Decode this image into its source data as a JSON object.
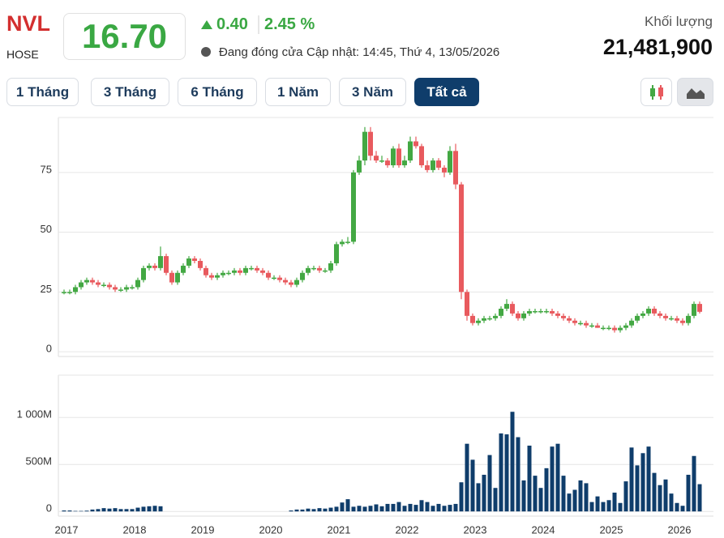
{
  "header": {
    "symbol": "NVL",
    "exchange": "HOSE",
    "price": "16.70",
    "change": "0.40",
    "change_pct": "2.45 %",
    "status": "Đang đóng cửa",
    "updated": "Cập nhật: 14:45, Thứ 4, 13/05/2026",
    "volume_label": "Khối lượng",
    "volume": "21,481,900"
  },
  "range_buttons": [
    "1 Tháng",
    "3 Tháng",
    "6 Tháng",
    "1 Năm",
    "3 Năm",
    "Tất cả"
  ],
  "chart_data": [
    {
      "type": "candlestick",
      "up_color": "#43a843",
      "down_color": "#e85a5e",
      "ylim": [
        -2,
        98
      ],
      "yticks": [
        0,
        25,
        50,
        75
      ],
      "grid": true,
      "open": [
        25,
        25,
        25,
        27,
        29,
        30,
        29,
        28,
        28,
        27,
        26,
        26,
        27,
        27,
        30,
        35,
        36,
        35,
        40,
        33,
        29,
        33,
        36,
        39,
        38,
        35,
        32,
        31,
        32,
        33,
        33,
        34,
        33,
        35,
        35,
        34,
        33,
        31,
        31,
        30,
        29,
        28,
        30,
        33,
        35,
        35,
        34,
        34,
        37,
        45,
        46,
        46,
        75,
        80,
        92,
        82,
        80,
        80,
        78,
        85,
        78,
        80,
        88,
        86,
        78,
        76,
        80,
        77,
        75,
        84,
        70,
        25,
        15,
        12,
        13,
        14,
        14,
        15,
        18,
        20,
        16,
        14,
        16,
        17,
        17,
        17,
        17,
        16,
        15,
        14,
        13,
        12,
        12,
        11,
        11,
        10,
        10,
        10,
        9,
        10,
        11,
        13,
        15,
        16,
        18,
        16,
        15,
        14,
        14,
        13,
        12,
        15,
        20
      ],
      "high": [
        26,
        26,
        28,
        30,
        31,
        31,
        30,
        29,
        29,
        28,
        27,
        28,
        28,
        31,
        36,
        37,
        37,
        44,
        41,
        34,
        34,
        37,
        40,
        40,
        39,
        36,
        33,
        33,
        34,
        34,
        35,
        35,
        36,
        36,
        36,
        35,
        34,
        32,
        32,
        31,
        30,
        31,
        34,
        36,
        36,
        36,
        35,
        38,
        46,
        47,
        48,
        76,
        82,
        94,
        94,
        84,
        82,
        81,
        86,
        87,
        82,
        90,
        90,
        87,
        80,
        81,
        81,
        78,
        86,
        87,
        71,
        26,
        16,
        14,
        15,
        15,
        16,
        19,
        22,
        21,
        17,
        17,
        18,
        18,
        18,
        18,
        18,
        17,
        16,
        15,
        14,
        13,
        13,
        12,
        12,
        11,
        11,
        11,
        11,
        12,
        14,
        16,
        17,
        19,
        19,
        17,
        16,
        15,
        15,
        14,
        16,
        21,
        21
      ],
      "low": [
        24,
        24,
        24,
        26,
        28,
        28,
        27,
        27,
        26,
        25,
        25,
        25,
        26,
        26,
        29,
        34,
        34,
        34,
        32,
        28,
        28,
        32,
        35,
        37,
        34,
        31,
        30,
        30,
        31,
        32,
        32,
        32,
        32,
        34,
        33,
        32,
        30,
        30,
        29,
        28,
        27,
        27,
        29,
        32,
        34,
        33,
        33,
        33,
        36,
        44,
        45,
        45,
        74,
        78,
        80,
        79,
        79,
        77,
        77,
        77,
        77,
        79,
        85,
        77,
        75,
        75,
        76,
        73,
        74,
        68,
        22,
        13,
        11,
        11,
        12,
        13,
        13,
        14,
        17,
        15,
        13,
        13,
        15,
        16,
        16,
        16,
        15,
        14,
        13,
        12,
        11,
        11,
        10,
        10,
        10,
        9,
        9,
        8,
        8,
        9,
        10,
        12,
        14,
        15,
        15,
        14,
        13,
        13,
        12,
        11,
        11,
        14,
        16
      ],
      "close": [
        25,
        25,
        27,
        29,
        30,
        29,
        28,
        28,
        27,
        26,
        26,
        27,
        27,
        30,
        35,
        36,
        35,
        40,
        33,
        29,
        33,
        36,
        39,
        38,
        35,
        32,
        31,
        32,
        33,
        33,
        34,
        33,
        35,
        35,
        34,
        33,
        31,
        31,
        30,
        29,
        28,
        30,
        33,
        35,
        35,
        34,
        34,
        37,
        45,
        46,
        46,
        75,
        80,
        92,
        82,
        80,
        80,
        78,
        85,
        78,
        80,
        88,
        86,
        78,
        76,
        80,
        77,
        75,
        84,
        70,
        25,
        15,
        12,
        13,
        14,
        14,
        15,
        18,
        20,
        16,
        14,
        16,
        17,
        17,
        17,
        17,
        16,
        15,
        14,
        13,
        12,
        12,
        11,
        11,
        10,
        10,
        10,
        9,
        10,
        11,
        13,
        15,
        16,
        18,
        16,
        15,
        14,
        14,
        13,
        12,
        15,
        20,
        16.7
      ]
    },
    {
      "type": "bar",
      "color": "#0f3d6b",
      "ylim": [
        -50,
        1450
      ],
      "yticks": [
        0,
        {
          "value": 500,
          "label": "500M"
        },
        {
          "value": 1000,
          "label": "1 000M"
        }
      ],
      "grid": true,
      "categories": [
        "2017",
        null,
        null,
        null,
        null,
        null,
        null,
        null,
        null,
        null,
        null,
        null,
        "2018",
        null,
        null,
        null,
        null,
        null,
        null,
        null,
        null,
        null,
        null,
        null,
        "2019",
        null,
        null,
        null,
        null,
        null,
        null,
        null,
        null,
        null,
        null,
        null,
        "2020",
        null,
        null,
        null,
        null,
        null,
        null,
        null,
        null,
        null,
        null,
        null,
        "2021",
        null,
        null,
        null,
        null,
        null,
        null,
        null,
        null,
        null,
        null,
        null,
        "2022",
        null,
        null,
        null,
        null,
        null,
        null,
        null,
        null,
        null,
        null,
        null,
        "2023",
        null,
        null,
        null,
        null,
        null,
        null,
        null,
        null,
        null,
        null,
        null,
        "2024",
        null,
        null,
        null,
        null,
        null,
        null,
        null,
        null,
        null,
        null,
        null,
        "2025",
        null,
        null,
        null,
        null,
        null,
        null,
        null,
        null,
        null,
        null,
        null,
        "2026",
        null,
        null,
        null,
        null
      ],
      "values": [
        10,
        10,
        5,
        5,
        8,
        20,
        25,
        35,
        30,
        35,
        25,
        25,
        25,
        40,
        50,
        55,
        60,
        55,
        0,
        0,
        0,
        0,
        0,
        0,
        0,
        0,
        0,
        0,
        0,
        0,
        0,
        0,
        0,
        0,
        0,
        0,
        0,
        0,
        0,
        0,
        10,
        20,
        20,
        30,
        25,
        35,
        30,
        40,
        50,
        95,
        130,
        50,
        60,
        50,
        60,
        75,
        55,
        80,
        80,
        100,
        60,
        80,
        70,
        120,
        100,
        60,
        80,
        60,
        70,
        80,
        310,
        720,
        550,
        300,
        390,
        600,
        250,
        830,
        820,
        1060,
        790,
        330,
        700,
        380,
        250,
        460,
        690,
        720,
        380,
        190,
        230,
        330,
        300,
        100,
        160,
        100,
        120,
        200,
        90,
        320,
        680,
        490,
        620,
        690,
        410,
        280,
        340,
        190,
        90,
        60,
        390,
        590,
        290
      ]
    }
  ]
}
